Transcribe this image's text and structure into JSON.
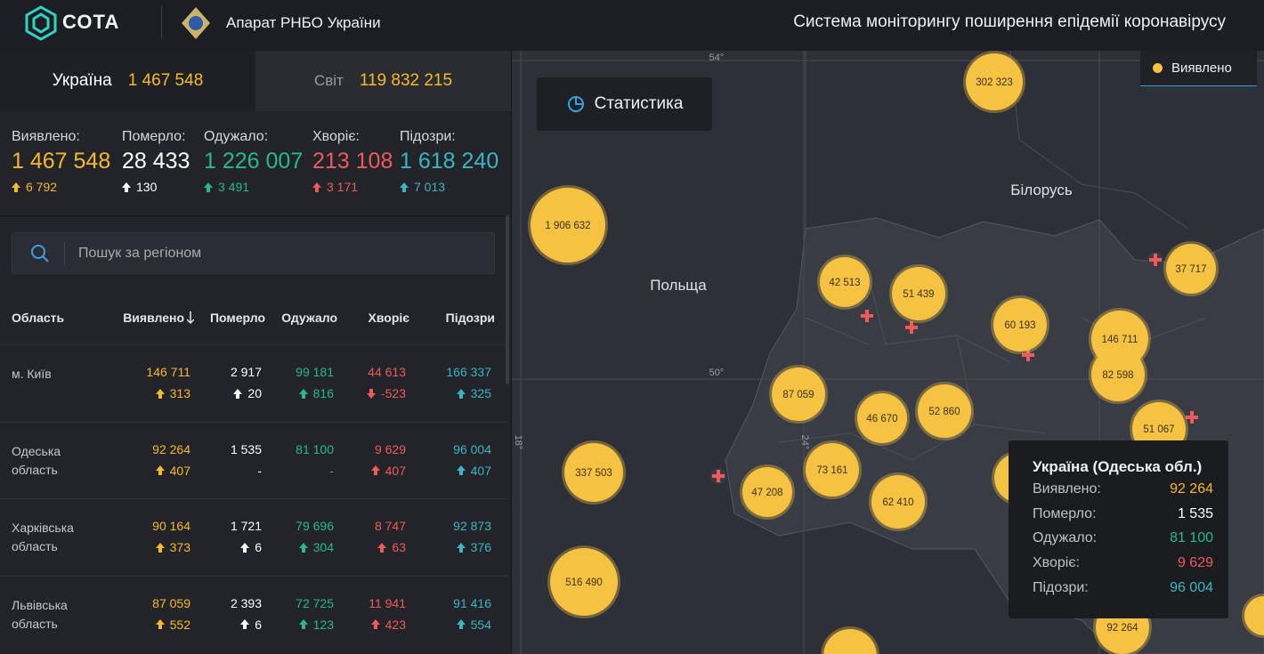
{
  "header": {
    "logo": "СОТА",
    "organization": "Апарат РНБО України",
    "title": "Система моніторингу поширення епідемії коронавірусу"
  },
  "tabs": [
    {
      "label": "Україна",
      "value": "1 467 548"
    },
    {
      "label": "Світ",
      "value": "119 832 215"
    }
  ],
  "summary": [
    {
      "label": "Виявлено:",
      "value": "1 467 548",
      "delta": "6 792"
    },
    {
      "label": "Померло:",
      "value": "28 433",
      "delta": "130"
    },
    {
      "label": "Одужало:",
      "value": "1 226 007",
      "delta": "3 491"
    },
    {
      "label": "Хворіє:",
      "value": "213 108",
      "delta": "3 171"
    },
    {
      "label": "Підозри:",
      "value": "1 618 240",
      "delta": "7 013"
    }
  ],
  "search": {
    "placeholder": "Пошук за регіоном"
  },
  "table": {
    "headers": [
      "Область",
      "Виявлено",
      "Померло",
      "Одужало",
      "Хворіє",
      "Підозри"
    ],
    "rows": [
      {
        "name": "м. Київ",
        "cells": [
          [
            "146 711",
            "313"
          ],
          [
            "2 917",
            "20"
          ],
          [
            "99 181",
            "816"
          ],
          [
            "44 613",
            "-523"
          ],
          [
            "166 337",
            "325"
          ]
        ]
      },
      {
        "name": "Одеська область",
        "cells": [
          [
            "92 264",
            "407"
          ],
          [
            "1 535",
            "-"
          ],
          [
            "81 100",
            "-"
          ],
          [
            "9 629",
            "407"
          ],
          [
            "96 004",
            "407"
          ]
        ]
      },
      {
        "name": "Харківська область",
        "cells": [
          [
            "90 164",
            "373"
          ],
          [
            "1 721",
            "6"
          ],
          [
            "79 696",
            "304"
          ],
          [
            "8 747",
            "63"
          ],
          [
            "92 873",
            "376"
          ]
        ]
      },
      {
        "name": "Львівська область",
        "cells": [
          [
            "87 059",
            "552"
          ],
          [
            "2 393",
            "6"
          ],
          [
            "72 725",
            "123"
          ],
          [
            "11 941",
            "423"
          ],
          [
            "91 416",
            "554"
          ]
        ]
      }
    ]
  },
  "map": {
    "button": "Статистика",
    "legend": "Виявлено",
    "countries": [
      "Польща",
      "Білорусь"
    ],
    "graticule": [
      "54°",
      "50°",
      "18°",
      "24°"
    ],
    "clusters": [
      "302 323",
      "1 906 632",
      "42 513",
      "51 439",
      "60 193",
      "146 711",
      "82 598",
      "37 717",
      "87 059",
      "46 670",
      "52 860",
      "51 067",
      "337 503",
      "73 161",
      "47 208",
      "62 410",
      "516 490",
      "92 264"
    ]
  },
  "tooltip": {
    "title": "Україна (Одеська обл.)",
    "rows": [
      {
        "label": "Виявлено:",
        "value": "92 264"
      },
      {
        "label": "Померло:",
        "value": "1 535"
      },
      {
        "label": "Одужало:",
        "value": "81 100"
      },
      {
        "label": "Хворіє:",
        "value": "9 629"
      },
      {
        "label": "Підозри:",
        "value": "96 004"
      }
    ]
  }
}
